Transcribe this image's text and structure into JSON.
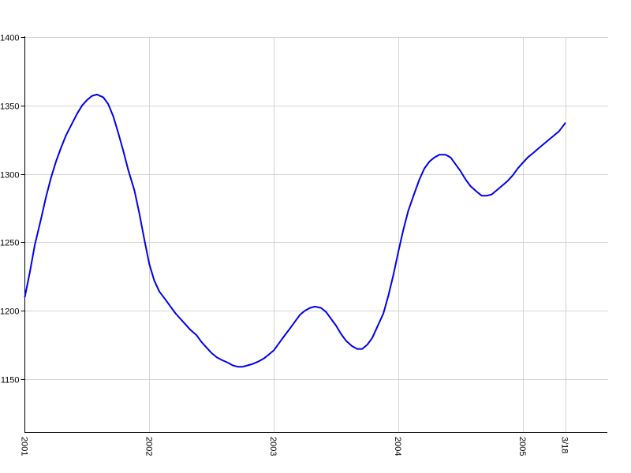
{
  "chart_data": {
    "type": "line",
    "title": "",
    "xlabel": "",
    "ylabel": "",
    "grid": true,
    "legend_position": "none",
    "x_tick_labels": [
      "2001",
      "2002",
      "2003",
      "2004",
      "2005",
      "3/18"
    ],
    "x_tick_positions": [
      2001,
      2002,
      2003,
      2004,
      2005,
      2005.34
    ],
    "y_ticks": [
      1150,
      1200,
      1250,
      1300,
      1350,
      1400
    ],
    "y_tick_labels": [
      "1150",
      "1200",
      "1250",
      "1300",
      "1350",
      "1400"
    ],
    "xlim": [
      2001,
      2005.34
    ],
    "ylim": [
      1111,
      1400
    ],
    "series": [
      {
        "name": "value-line",
        "color": "#0000ee",
        "points": [
          [
            2001.0,
            1210
          ],
          [
            2001.04,
            1228
          ],
          [
            2001.08,
            1248
          ],
          [
            2001.13,
            1267
          ],
          [
            2001.17,
            1283
          ],
          [
            2001.21,
            1297
          ],
          [
            2001.25,
            1309
          ],
          [
            2001.29,
            1319
          ],
          [
            2001.33,
            1328
          ],
          [
            2001.38,
            1337
          ],
          [
            2001.42,
            1344
          ],
          [
            2001.46,
            1350
          ],
          [
            2001.5,
            1354
          ],
          [
            2001.54,
            1357
          ],
          [
            2001.58,
            1358
          ],
          [
            2001.63,
            1356
          ],
          [
            2001.67,
            1351
          ],
          [
            2001.71,
            1342
          ],
          [
            2001.75,
            1330
          ],
          [
            2001.79,
            1317
          ],
          [
            2001.83,
            1303
          ],
          [
            2001.88,
            1288
          ],
          [
            2001.92,
            1271
          ],
          [
            2001.96,
            1252
          ],
          [
            2002.0,
            1234
          ],
          [
            2002.04,
            1222
          ],
          [
            2002.08,
            1214
          ],
          [
            2002.13,
            1208
          ],
          [
            2002.17,
            1203
          ],
          [
            2002.21,
            1198
          ],
          [
            2002.25,
            1194
          ],
          [
            2002.29,
            1190
          ],
          [
            2002.33,
            1186
          ],
          [
            2002.38,
            1182
          ],
          [
            2002.42,
            1177
          ],
          [
            2002.46,
            1173
          ],
          [
            2002.5,
            1169
          ],
          [
            2002.54,
            1166
          ],
          [
            2002.58,
            1164
          ],
          [
            2002.63,
            1162
          ],
          [
            2002.67,
            1160
          ],
          [
            2002.71,
            1159
          ],
          [
            2002.75,
            1159
          ],
          [
            2002.79,
            1160
          ],
          [
            2002.83,
            1161
          ],
          [
            2002.88,
            1163
          ],
          [
            2002.92,
            1165
          ],
          [
            2002.96,
            1168
          ],
          [
            2003.0,
            1171
          ],
          [
            2003.04,
            1176
          ],
          [
            2003.08,
            1181
          ],
          [
            2003.13,
            1187
          ],
          [
            2003.17,
            1192
          ],
          [
            2003.21,
            1197
          ],
          [
            2003.25,
            1200
          ],
          [
            2003.29,
            1202
          ],
          [
            2003.33,
            1203
          ],
          [
            2003.38,
            1202
          ],
          [
            2003.42,
            1199
          ],
          [
            2003.46,
            1194
          ],
          [
            2003.5,
            1189
          ],
          [
            2003.54,
            1183
          ],
          [
            2003.58,
            1178
          ],
          [
            2003.63,
            1174
          ],
          [
            2003.67,
            1172
          ],
          [
            2003.71,
            1172
          ],
          [
            2003.75,
            1175
          ],
          [
            2003.79,
            1180
          ],
          [
            2003.83,
            1188
          ],
          [
            2003.88,
            1198
          ],
          [
            2003.92,
            1211
          ],
          [
            2003.96,
            1226
          ],
          [
            2004.0,
            1243
          ],
          [
            2004.04,
            1259
          ],
          [
            2004.08,
            1273
          ],
          [
            2004.13,
            1286
          ],
          [
            2004.17,
            1296
          ],
          [
            2004.21,
            1304
          ],
          [
            2004.25,
            1309
          ],
          [
            2004.29,
            1312
          ],
          [
            2004.33,
            1314
          ],
          [
            2004.38,
            1314
          ],
          [
            2004.42,
            1312
          ],
          [
            2004.46,
            1307
          ],
          [
            2004.5,
            1302
          ],
          [
            2004.54,
            1296
          ],
          [
            2004.58,
            1291
          ],
          [
            2004.63,
            1287
          ],
          [
            2004.67,
            1284
          ],
          [
            2004.71,
            1284
          ],
          [
            2004.75,
            1285
          ],
          [
            2004.79,
            1288
          ],
          [
            2004.83,
            1291
          ],
          [
            2004.88,
            1295
          ],
          [
            2004.92,
            1299
          ],
          [
            2004.96,
            1304
          ],
          [
            2005.0,
            1308
          ],
          [
            2005.04,
            1312
          ],
          [
            2005.08,
            1315
          ],
          [
            2005.13,
            1319
          ],
          [
            2005.17,
            1322
          ],
          [
            2005.21,
            1325
          ],
          [
            2005.25,
            1328
          ],
          [
            2005.29,
            1331
          ],
          [
            2005.34,
            1337
          ]
        ]
      }
    ],
    "colors": {
      "line": "#0000ee",
      "grid": "#d4d4d4",
      "axis": "#000000",
      "background": "#ffffff",
      "label": "#000000"
    }
  }
}
